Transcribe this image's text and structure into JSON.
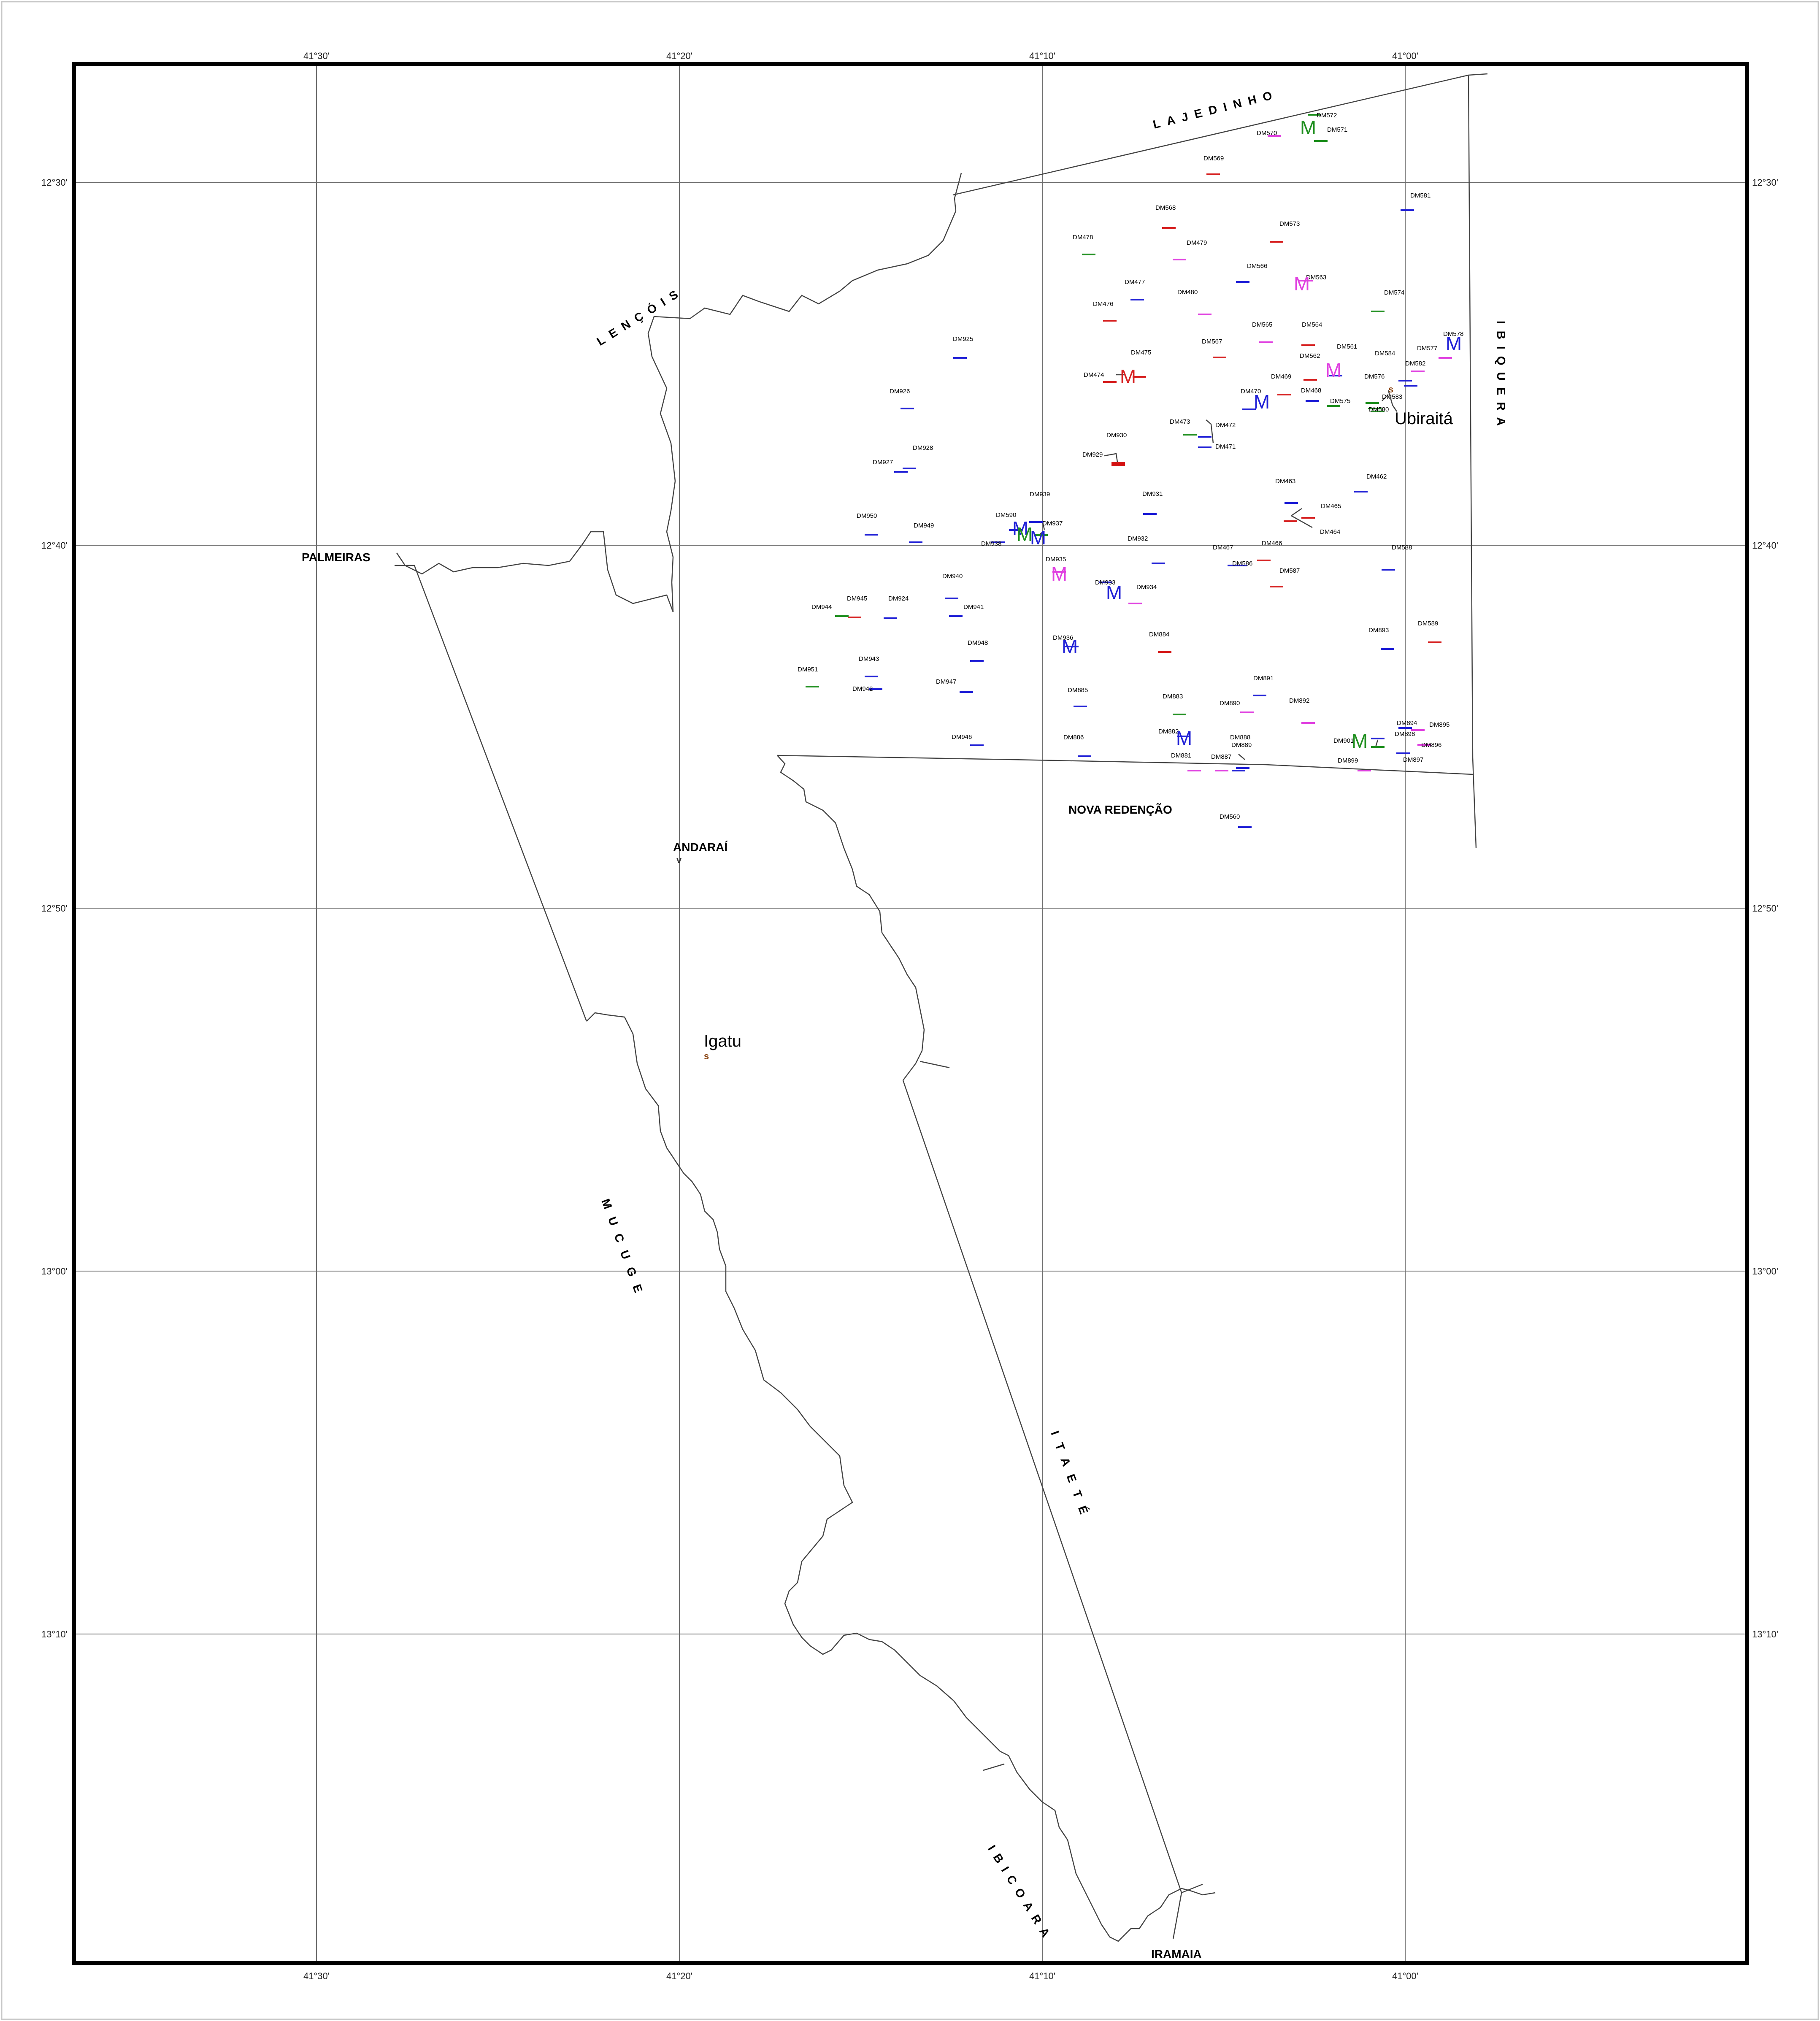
{
  "map": {
    "longitude_ticks": [
      "41°30'",
      "41°20'",
      "41°10'",
      "41°00'"
    ],
    "latitude_ticks": [
      "12°30'",
      "12°40'",
      "12°50'",
      "13°00'",
      "13°10'"
    ],
    "places": {
      "lajedinho": "LAJEDINHO",
      "lencois": "LENÇÓIS",
      "ibiquera": "IBIQUERA",
      "palmeiras": "PALMEIRAS",
      "andarai": "ANDARAÍ",
      "nova_redencao": "NOVA   REDENÇÃO",
      "mucuge": "MUCUGE",
      "itaete": "ITAETÉ",
      "ibicoara": "IBICOARA",
      "iramaia": "IRAMAIA",
      "ubiraita": "Ubiraitá",
      "igatu": "Igatu"
    },
    "symbol_s": "s",
    "symbol_v": "v",
    "colors": {
      "blue": "#1f1fd6",
      "red": "#d61f1f",
      "magenta": "#e040e0",
      "green": "#1f8f1f",
      "brown": "#8b4513"
    },
    "stations": [
      {
        "label": "DM572",
        "color": "green"
      },
      {
        "label": "DM570",
        "color": "magenta"
      },
      {
        "label": "DM571",
        "color": "green"
      },
      {
        "label": "DM569",
        "color": "red"
      },
      {
        "label": "DM581",
        "color": "blue"
      },
      {
        "label": "DM568",
        "color": "red"
      },
      {
        "label": "DM573",
        "color": "red"
      },
      {
        "label": "DM478",
        "color": "green"
      },
      {
        "label": "DM479",
        "color": "magenta"
      },
      {
        "label": "DM566",
        "color": "blue"
      },
      {
        "label": "DM563",
        "color": "magenta"
      },
      {
        "label": "DM477",
        "color": "blue"
      },
      {
        "label": "DM480",
        "color": "magenta"
      },
      {
        "label": "DM574",
        "color": "green"
      },
      {
        "label": "DM476",
        "color": "red"
      },
      {
        "label": "DM565",
        "color": "magenta"
      },
      {
        "label": "DM564",
        "color": "red"
      },
      {
        "label": "DM925",
        "color": "blue"
      },
      {
        "label": "DM578",
        "color": "magenta"
      },
      {
        "label": "DM567",
        "color": "red"
      },
      {
        "label": "DM561",
        "color": "blue"
      },
      {
        "label": "DM475",
        "color": "red"
      },
      {
        "label": "DM562",
        "color": "red"
      },
      {
        "label": "DM584",
        "color": "blue"
      },
      {
        "label": "DM577",
        "color": "magenta"
      },
      {
        "label": "DM582",
        "color": "blue"
      },
      {
        "label": "DM474",
        "color": "red"
      },
      {
        "label": "DM469",
        "color": "red"
      },
      {
        "label": "DM576",
        "color": "green"
      },
      {
        "label": "DM926",
        "color": "blue"
      },
      {
        "label": "DM470",
        "color": "blue"
      },
      {
        "label": "DM468",
        "color": "blue"
      },
      {
        "label": "DM575",
        "color": "green"
      },
      {
        "label": "DM583",
        "color": "green"
      },
      {
        "label": "DM580",
        "color": "green"
      },
      {
        "label": "DM473",
        "color": "green"
      },
      {
        "label": "DM472",
        "color": "blue"
      },
      {
        "label": "DM930",
        "color": "red"
      },
      {
        "label": "DM471",
        "color": "blue"
      },
      {
        "label": "DM928",
        "color": "blue"
      },
      {
        "label": "DM929",
        "color": "red"
      },
      {
        "label": "DM927",
        "color": "blue"
      },
      {
        "label": "DM463",
        "color": "blue"
      },
      {
        "label": "DM462",
        "color": "blue"
      },
      {
        "label": "DM939",
        "color": "blue"
      },
      {
        "label": "DM931",
        "color": "blue"
      },
      {
        "label": "DM465",
        "color": "red"
      },
      {
        "label": "DM590",
        "color": "blue"
      },
      {
        "label": "DM950",
        "color": "blue"
      },
      {
        "label": "DM937",
        "color": "green"
      },
      {
        "label": "DM949",
        "color": "blue"
      },
      {
        "label": "DM464",
        "color": "red"
      },
      {
        "label": "DM938",
        "color": "blue"
      },
      {
        "label": "DM932",
        "color": "blue"
      },
      {
        "label": "DM466",
        "color": "red"
      },
      {
        "label": "DM467",
        "color": "blue"
      },
      {
        "label": "DM588",
        "color": "blue"
      },
      {
        "label": "DM586",
        "color": "blue"
      },
      {
        "label": "DM935",
        "color": "magenta"
      },
      {
        "label": "DM587",
        "color": "red"
      },
      {
        "label": "DM940",
        "color": "blue"
      },
      {
        "label": "DM933",
        "color": "blue"
      },
      {
        "label": "DM934",
        "color": "magenta"
      },
      {
        "label": "DM945",
        "color": "red"
      },
      {
        "label": "DM924",
        "color": "blue"
      },
      {
        "label": "DM944",
        "color": "green"
      },
      {
        "label": "DM941",
        "color": "blue"
      },
      {
        "label": "DM589",
        "color": "red"
      },
      {
        "label": "DM893",
        "color": "blue"
      },
      {
        "label": "DM884",
        "color": "red"
      },
      {
        "label": "DM936",
        "color": "blue"
      },
      {
        "label": "DM948",
        "color": "blue"
      },
      {
        "label": "DM943",
        "color": "blue"
      },
      {
        "label": "DM951",
        "color": "green"
      },
      {
        "label": "DM891",
        "color": "blue"
      },
      {
        "label": "DM947",
        "color": "blue"
      },
      {
        "label": "DM942",
        "color": "blue"
      },
      {
        "label": "DM885",
        "color": "blue"
      },
      {
        "label": "DM883",
        "color": "green"
      },
      {
        "label": "DM890",
        "color": "magenta"
      },
      {
        "label": "DM892",
        "color": "magenta"
      },
      {
        "label": "DM894",
        "color": "blue"
      },
      {
        "label": "DM895",
        "color": "magenta"
      },
      {
        "label": "DM898",
        "color": "blue"
      },
      {
        "label": "DM882",
        "color": "blue"
      },
      {
        "label": "DM901",
        "color": "green"
      },
      {
        "label": "DM896",
        "color": "magenta"
      },
      {
        "label": "DM946",
        "color": "blue"
      },
      {
        "label": "DM886",
        "color": "blue"
      },
      {
        "label": "DM888",
        "color": "blue"
      },
      {
        "label": "DM889",
        "color": "blue"
      },
      {
        "label": "DM881",
        "color": "magenta"
      },
      {
        "label": "DM887",
        "color": "magenta"
      },
      {
        "label": "DM897",
        "color": "blue"
      },
      {
        "label": "DM899",
        "color": "magenta"
      },
      {
        "label": "DM560",
        "color": "blue"
      }
    ],
    "markers": [
      {
        "label": "M",
        "color": "green"
      },
      {
        "label": "M",
        "color": "magenta"
      },
      {
        "label": "M",
        "color": "blue"
      },
      {
        "label": "M",
        "color": "magenta"
      },
      {
        "label": "M",
        "color": "red"
      },
      {
        "label": "M",
        "color": "blue"
      },
      {
        "label": "M",
        "color": "blue"
      },
      {
        "label": "M",
        "color": "green"
      },
      {
        "label": "M",
        "color": "blue"
      },
      {
        "label": "M",
        "color": "magenta"
      },
      {
        "label": "M",
        "color": "blue"
      },
      {
        "label": "M",
        "color": "blue"
      },
      {
        "label": "M",
        "color": "blue"
      },
      {
        "label": "M",
        "color": "green"
      }
    ]
  }
}
